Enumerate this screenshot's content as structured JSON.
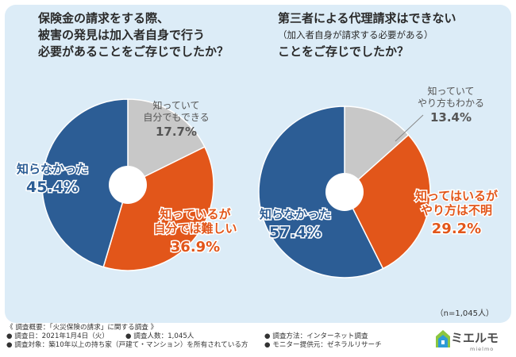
{
  "questions": {
    "left": [
      "保険金の請求をする際、",
      "被害の発見は加入者自身で行う",
      "必要があることをご存じでしたか？"
    ],
    "right_line1": "第三者による代理請求はできない",
    "right_line2": "（加入者自身が請求する必要がある）",
    "right_line3": "ことをご存じでしたか？"
  },
  "survey_n": "（n=1,045人）",
  "footer": {
    "overview": "《 調査概要：「火災保険の請求」に関する調査 》",
    "date": "● 調査日：2021年1月4日（火）",
    "target": "● 調査対象：築10年以上の持ち家（戸建て・マンション）を所有されている方",
    "count": "● 調査人数：1,045人",
    "method": "● 調査方法：インターネット調査",
    "provider": "● モニター提供元：ゼネラルリサーチ"
  },
  "logo": {
    "name": "ミエルモ",
    "sub": "mielmo"
  },
  "chart_data": [
    {
      "type": "pie",
      "title": "保険金の請求をする際、被害の発見は加入者自身で行う必要があることをご存じでしたか？",
      "slices": [
        {
          "label": [
            "知っていて",
            "自分でもできる"
          ],
          "value": 17.7,
          "display": "17.7%",
          "color": "#c8c8c8",
          "label_color": "#555555"
        },
        {
          "label": [
            "知っているが",
            "自分では難しい"
          ],
          "value": 36.9,
          "display": "36.9%",
          "color": "#e2561a",
          "label_color": "#e2561a"
        },
        {
          "label": [
            "知らなかった"
          ],
          "value": 45.4,
          "display": "45.4%",
          "color": "#2c5d95",
          "label_color": "#2c5d95"
        }
      ]
    },
    {
      "type": "pie",
      "title": "第三者による代理請求はできない（加入者自身が請求する必要がある）ことをご存じでしたか？",
      "slices": [
        {
          "label": [
            "知っていて",
            "やり方もわかる"
          ],
          "value": 13.4,
          "display": "13.4%",
          "color": "#c8c8c8",
          "label_color": "#555555"
        },
        {
          "label": [
            "知ってはいるが",
            "やり方は不明"
          ],
          "value": 29.2,
          "display": "29.2%",
          "color": "#e2561a",
          "label_color": "#e2561a"
        },
        {
          "label": [
            "知らなかった"
          ],
          "value": 57.4,
          "display": "57.4%",
          "color": "#2c5d95",
          "label_color": "#2c5d95"
        }
      ]
    }
  ]
}
